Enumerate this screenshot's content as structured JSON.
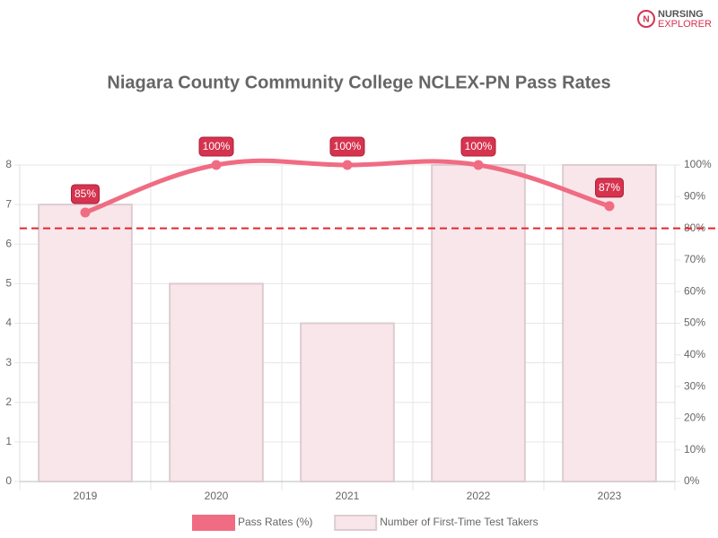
{
  "logo": {
    "line1": "NURSING",
    "line2": "EXPLORER"
  },
  "chart_data": {
    "type": "combo",
    "title": "Niagara County Community College NCLEX-PN Pass Rates",
    "categories": [
      "2019",
      "2020",
      "2021",
      "2022",
      "2023"
    ],
    "series": [
      {
        "name": "Pass Rates (%)",
        "type": "line",
        "axis": "y2",
        "color": "#f06c82",
        "values": [
          85,
          100,
          100,
          100,
          87
        ],
        "value_labels": [
          "85%",
          "100%",
          "100%",
          "100%",
          "87%"
        ]
      },
      {
        "name": "Number of First-Time Test Takers",
        "type": "bar",
        "color": "#f9e6ea",
        "values": [
          7,
          5,
          4,
          8,
          8
        ]
      }
    ],
    "ylim": [
      0,
      8
    ],
    "yticks": [
      0,
      1,
      2,
      3,
      4,
      5,
      6,
      7,
      8
    ],
    "y2lim": [
      0,
      100
    ],
    "y2ticks": [
      {
        "value": 0,
        "label": "0%"
      },
      {
        "value": 10,
        "label": "10%"
      },
      {
        "value": 20,
        "label": "20%"
      },
      {
        "value": 30,
        "label": "30%"
      },
      {
        "value": 40,
        "label": "40%"
      },
      {
        "value": 50,
        "label": "50%"
      },
      {
        "value": 60,
        "label": "60%"
      },
      {
        "value": 70,
        "label": "70%"
      },
      {
        "value": 80,
        "label": "80%"
      },
      {
        "value": 90,
        "label": "90%"
      },
      {
        "value": 100,
        "label": "100%"
      }
    ],
    "reference_line": {
      "value": 80,
      "axis": "y2",
      "color": "#e3262f"
    },
    "grid": true,
    "legend": "bottom"
  }
}
